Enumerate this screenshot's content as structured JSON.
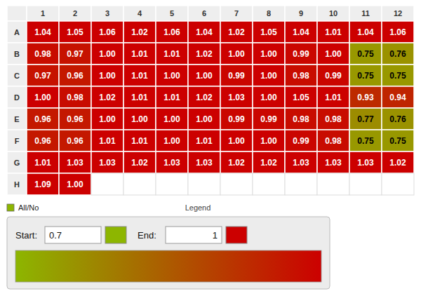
{
  "chart_data": {
    "type": "heatmap",
    "title": "Legend",
    "subtitle": "All/No",
    "categories": [
      "1",
      "2",
      "3",
      "4",
      "5",
      "6",
      "7",
      "8",
      "9",
      "10",
      "11",
      "12"
    ],
    "rows": [
      "A",
      "B",
      "C",
      "D",
      "E",
      "F",
      "G",
      "H"
    ],
    "values": [
      [
        1.04,
        1.05,
        1.06,
        1.02,
        1.06,
        1.04,
        1.02,
        1.05,
        1.04,
        1.01,
        1.04,
        1.06
      ],
      [
        0.98,
        0.97,
        1.0,
        1.01,
        1.01,
        1.02,
        1.0,
        1.0,
        0.99,
        1.0,
        0.75,
        0.76
      ],
      [
        0.97,
        0.96,
        1.0,
        1.01,
        1.0,
        1.0,
        0.99,
        1.0,
        0.98,
        0.99,
        0.75,
        0.75
      ],
      [
        1.0,
        0.98,
        1.02,
        1.01,
        1.01,
        1.02,
        1.03,
        1.0,
        1.05,
        1.01,
        0.93,
        0.94
      ],
      [
        0.96,
        0.96,
        1.0,
        1.0,
        1.0,
        1.0,
        0.99,
        0.99,
        0.98,
        0.98,
        0.77,
        0.76
      ],
      [
        0.96,
        0.96,
        1.01,
        1.01,
        1.0,
        1.01,
        1.0,
        1.0,
        0.99,
        0.98,
        0.75,
        0.75
      ],
      [
        1.01,
        1.03,
        1.03,
        1.02,
        1.03,
        1.03,
        1.02,
        1.02,
        1.03,
        1.03,
        1.03,
        1.02
      ],
      [
        1.09,
        1.0,
        null,
        null,
        null,
        null,
        null,
        null,
        null,
        null,
        null,
        null
      ]
    ],
    "value_labels": [
      [
        "1.04",
        "1.05",
        "1.06",
        "1.02",
        "1.06",
        "1.04",
        "1.02",
        "1.05",
        "1.04",
        "1.01",
        "1.04",
        "1.06"
      ],
      [
        "0.98",
        "0.97",
        "1.00",
        "1.01",
        "1.01",
        "1.02",
        "1.00",
        "1.00",
        "0.99",
        "1.00",
        "0.75",
        "0.76"
      ],
      [
        "0.97",
        "0.96",
        "1.00",
        "1.01",
        "1.00",
        "1.00",
        "0.99",
        "1.00",
        "0.98",
        "0.99",
        "0.75",
        "0.75"
      ],
      [
        "1.00",
        "0.98",
        "1.02",
        "1.01",
        "1.01",
        "1.02",
        "1.03",
        "1.00",
        "1.05",
        "1.01",
        "0.93",
        "0.94"
      ],
      [
        "0.96",
        "0.96",
        "1.00",
        "1.00",
        "1.00",
        "1.00",
        "0.99",
        "0.99",
        "0.98",
        "0.98",
        "0.77",
        "0.76"
      ],
      [
        "0.96",
        "0.96",
        "1.01",
        "1.01",
        "1.00",
        "1.01",
        "1.00",
        "1.00",
        "0.99",
        "0.98",
        "0.75",
        "0.75"
      ],
      [
        "1.01",
        "1.03",
        "1.03",
        "1.02",
        "1.03",
        "1.03",
        "1.02",
        "1.02",
        "1.03",
        "1.03",
        "1.03",
        "1.02"
      ],
      [
        "1.09",
        "1.00",
        null,
        null,
        null,
        null,
        null,
        null,
        null,
        null,
        null,
        null
      ]
    ],
    "data_labels": true,
    "color_range": [
      0.7,
      1
    ],
    "color_ticks": [
      0.7,
      1
    ],
    "colors": [
      "#8db600",
      "#cc0000"
    ],
    "start_label": "Start:",
    "end_label": "End:"
  }
}
